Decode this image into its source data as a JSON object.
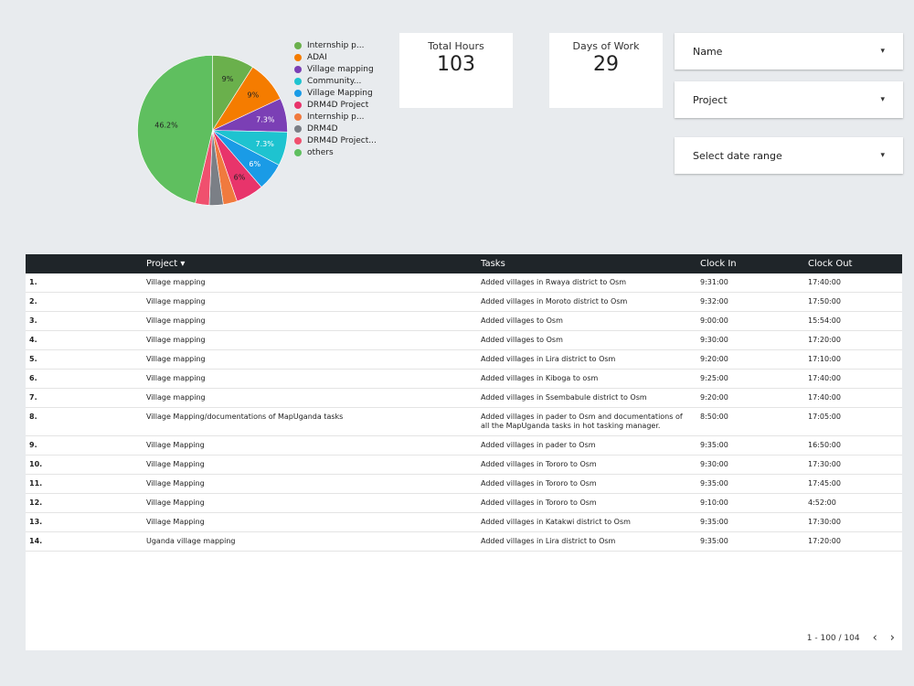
{
  "chart_data": {
    "type": "pie",
    "slices": [
      {
        "label": "Internship p...",
        "value": 9,
        "data_label": "9%",
        "color": "#6ab04c"
      },
      {
        "label": "ADAI",
        "value": 9,
        "data_label": "9%",
        "color": "#f57c00"
      },
      {
        "label": "Village mapping",
        "value": 7.3,
        "data_label": "7.3%",
        "color": "#7b3fb5"
      },
      {
        "label": "Community...",
        "value": 7.3,
        "data_label": "7.3%",
        "color": "#1ec3d0"
      },
      {
        "label": "Village Mapping",
        "value": 6,
        "data_label": "6%",
        "color": "#1a9be6"
      },
      {
        "label": "DRM4D Project",
        "value": 6,
        "data_label": "6%",
        "color": "#e8346b"
      },
      {
        "label": "Internship p...",
        "value": 3,
        "data_label": "",
        "color": "#f07a3e"
      },
      {
        "label": "DRM4D",
        "value": 3,
        "data_label": "",
        "color": "#7b7f86"
      },
      {
        "label": "DRM4D Project...",
        "value": 3,
        "data_label": "",
        "color": "#f0506e"
      },
      {
        "label": "others",
        "value": 46.2,
        "data_label": "46.2%",
        "color": "#5fbf5f"
      }
    ],
    "legend_position": "right"
  },
  "scorecards": {
    "total_hours_label": "Total Hours",
    "total_hours_value": "103",
    "days_label": "Days of Work",
    "days_value": "29"
  },
  "filters": [
    {
      "label": "Name"
    },
    {
      "label": "Project"
    },
    {
      "label": "Select date range"
    }
  ],
  "table": {
    "headers": {
      "project": "Project ▾",
      "tasks": "Tasks",
      "clock_in": "Clock In",
      "clock_out": "Clock Out"
    },
    "rows": [
      {
        "num": "1.",
        "project": "Village mapping",
        "task": "Added villages in Rwaya district to Osm",
        "in": "9:31:00",
        "out": "17:40:00"
      },
      {
        "num": "2.",
        "project": "Village mapping",
        "task": "Added villages in Moroto district to Osm",
        "in": "9:32:00",
        "out": "17:50:00"
      },
      {
        "num": "3.",
        "project": "Village mapping",
        "task": "Added villages to Osm",
        "in": "9:00:00",
        "out": "15:54:00"
      },
      {
        "num": "4.",
        "project": "Village mapping",
        "task": "Added villages to Osm",
        "in": "9:30:00",
        "out": "17:20:00"
      },
      {
        "num": "5.",
        "project": "Village mapping",
        "task": "Added villages in Lira district to Osm",
        "in": "9:20:00",
        "out": "17:10:00"
      },
      {
        "num": "6.",
        "project": "Village mapping",
        "task": "Added villages in Kiboga to osm",
        "in": "9:25:00",
        "out": "17:40:00"
      },
      {
        "num": "7.",
        "project": "Village mapping",
        "task": "Added villages in Ssembabule district to Osm",
        "in": "9:20:00",
        "out": "17:40:00"
      },
      {
        "num": "8.",
        "project": "Village Mapping/documentations of MapUganda tasks",
        "task": "Added villages in pader to Osm and documentations of all the MapUganda tasks in hot tasking manager.",
        "in": "8:50:00",
        "out": "17:05:00"
      },
      {
        "num": "9.",
        "project": "Village Mapping",
        "task": "Added villages in pader to Osm",
        "in": "9:35:00",
        "out": "16:50:00"
      },
      {
        "num": "10.",
        "project": "Village Mapping",
        "task": "Added villages in Tororo to Osm",
        "in": "9:30:00",
        "out": "17:30:00"
      },
      {
        "num": "11.",
        "project": "Village Mapping",
        "task": "Added villages in Tororo to Osm",
        "in": "9:35:00",
        "out": "17:45:00"
      },
      {
        "num": "12.",
        "project": "Village Mapping",
        "task": "Added villages in Tororo to Osm",
        "in": "9:10:00",
        "out": "4:52:00"
      },
      {
        "num": "13.",
        "project": "Village Mapping",
        "task": "Added villages in Katakwi district to Osm",
        "in": "9:35:00",
        "out": "17:30:00"
      },
      {
        "num": "14.",
        "project": "Uganda village mapping",
        "task": "Added villages in Lira district to Osm",
        "in": "9:35:00",
        "out": "17:20:00"
      }
    ]
  },
  "pager": {
    "range": "1 - 100 / 104",
    "prev": "‹",
    "next": "›"
  }
}
